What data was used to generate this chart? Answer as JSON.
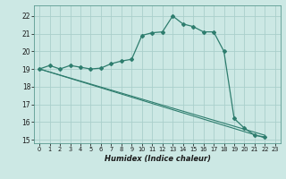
{
  "xlabel": "Humidex (Indice chaleur)",
  "bg_color": "#cce8e4",
  "grid_color": "#aacfcb",
  "line_color": "#2e7d6e",
  "xlim": [
    -0.5,
    23.5
  ],
  "ylim": [
    14.8,
    22.6
  ],
  "yticks": [
    15,
    16,
    17,
    18,
    19,
    20,
    21,
    22
  ],
  "xticks": [
    0,
    1,
    2,
    3,
    4,
    5,
    6,
    7,
    8,
    9,
    10,
    11,
    12,
    13,
    14,
    15,
    16,
    17,
    18,
    19,
    20,
    21,
    22,
    23
  ],
  "line_main": {
    "x": [
      0,
      1,
      2,
      3,
      4,
      5,
      6,
      7,
      8,
      9,
      10,
      11,
      12,
      13,
      14,
      15,
      16,
      17,
      18,
      19,
      20,
      21,
      22
    ],
    "y": [
      19.0,
      19.2,
      19.0,
      19.2,
      19.1,
      19.0,
      19.05,
      19.3,
      19.45,
      19.55,
      20.9,
      21.05,
      21.1,
      22.0,
      21.55,
      21.4,
      21.1,
      21.1,
      20.0,
      16.2,
      15.65,
      15.25,
      15.15
    ]
  },
  "line_diag1": {
    "x": [
      0,
      22
    ],
    "y": [
      19.0,
      15.1
    ]
  },
  "line_diag2": {
    "x": [
      0,
      22
    ],
    "y": [
      19.0,
      15.25
    ]
  }
}
